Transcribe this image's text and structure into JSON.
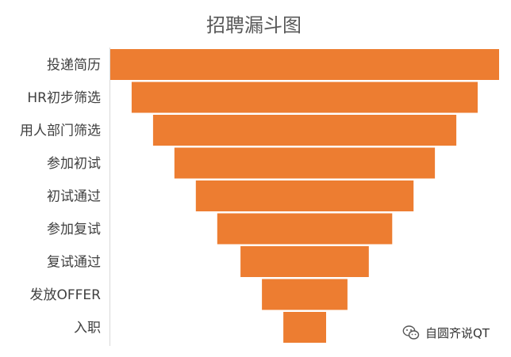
{
  "chart_data": {
    "type": "bar",
    "subtype": "funnel",
    "title": "招聘漏斗图",
    "categories": [
      "投递简历",
      "HR初步筛选",
      "用人部门筛选",
      "参加初试",
      "初试通过",
      "参加复试",
      "复试通过",
      "发放OFFER",
      "入职"
    ],
    "values": [
      100,
      89,
      78,
      67,
      56,
      45,
      33,
      22,
      11
    ],
    "bar_color": "#ED7D31",
    "grid": false,
    "legend": "none"
  },
  "watermark": {
    "text": "自圆齐说QT",
    "icon": "wechat-icon"
  }
}
